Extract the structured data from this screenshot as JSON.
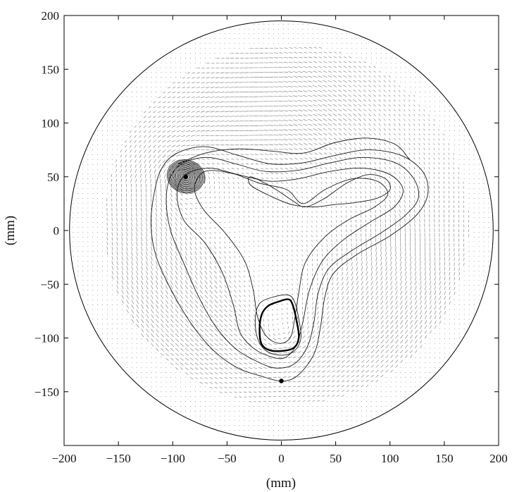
{
  "chart_data": {
    "type": "vector-field",
    "title": "",
    "xlabel": "(mm)",
    "ylabel": "(mm)",
    "xlim": [
      -200,
      200
    ],
    "ylim": [
      -200,
      200
    ],
    "xticks": [
      -200,
      -150,
      -100,
      -50,
      0,
      50,
      100,
      150,
      200
    ],
    "yticks": [
      -150,
      -100,
      -50,
      0,
      50,
      100,
      150,
      200
    ],
    "xtick_labels": [
      "−200",
      "−150",
      "−100",
      "−50",
      "0",
      "50",
      "100",
      "150",
      "200"
    ],
    "ytick_labels": [
      "−150",
      "−100",
      "−50",
      "0",
      "50",
      "100",
      "150",
      "200"
    ],
    "grid": false,
    "boundary_circle": {
      "cx": 0,
      "cy": 0,
      "r": 195
    },
    "vector_field_extent": {
      "cx": 5,
      "cy": 5,
      "r": 168
    },
    "vortices": [
      {
        "x": -90,
        "y": 50,
        "strength": 1.2
      },
      {
        "x": 10,
        "y": 5,
        "strength": -0.15
      },
      {
        "x": 0,
        "y": -95,
        "strength": 0.9
      }
    ],
    "markers": [
      {
        "x": -88,
        "y": 50
      },
      {
        "x": 0,
        "y": -140
      }
    ],
    "streamlines": [
      {
        "id": "outer-trefoil",
        "points": [
          [
            0,
            -140
          ],
          [
            -20,
            -135
          ],
          [
            -40,
            -128
          ],
          [
            -62,
            -112
          ],
          [
            -82,
            -88
          ],
          [
            -100,
            -58
          ],
          [
            -115,
            -25
          ],
          [
            -120,
            5
          ],
          [
            -117,
            35
          ],
          [
            -110,
            58
          ],
          [
            -96,
            72
          ],
          [
            -70,
            78
          ],
          [
            -40,
            70
          ],
          [
            -10,
            62
          ],
          [
            20,
            63
          ],
          [
            50,
            70
          ],
          [
            80,
            75
          ],
          [
            110,
            70
          ],
          [
            130,
            55
          ],
          [
            135,
            35
          ],
          [
            125,
            15
          ],
          [
            100,
            -5
          ],
          [
            70,
            -22
          ],
          [
            48,
            -40
          ],
          [
            40,
            -62
          ],
          [
            36,
            -90
          ],
          [
            30,
            -115
          ],
          [
            15,
            -135
          ],
          [
            0,
            -140
          ]
        ]
      },
      {
        "id": "middle-trefoil",
        "points": [
          [
            -5,
            -128
          ],
          [
            -22,
            -122
          ],
          [
            -42,
            -110
          ],
          [
            -60,
            -90
          ],
          [
            -76,
            -62
          ],
          [
            -90,
            -30
          ],
          [
            -102,
            0
          ],
          [
            -106,
            28
          ],
          [
            -102,
            50
          ],
          [
            -90,
            63
          ],
          [
            -68,
            68
          ],
          [
            -42,
            62
          ],
          [
            -15,
            55
          ],
          [
            15,
            56
          ],
          [
            45,
            63
          ],
          [
            75,
            68
          ],
          [
            105,
            63
          ],
          [
            122,
            48
          ],
          [
            126,
            30
          ],
          [
            114,
            14
          ],
          [
            92,
            -2
          ],
          [
            66,
            -18
          ],
          [
            44,
            -35
          ],
          [
            34,
            -58
          ],
          [
            30,
            -85
          ],
          [
            24,
            -108
          ],
          [
            12,
            -124
          ],
          [
            -5,
            -128
          ]
        ]
      },
      {
        "id": "inner-trefoil",
        "points": [
          [
            -8,
            -118
          ],
          [
            -25,
            -110
          ],
          [
            -38,
            -95
          ],
          [
            -44,
            -70
          ],
          [
            -54,
            -40
          ],
          [
            -70,
            -12
          ],
          [
            -90,
            10
          ],
          [
            -96,
            35
          ],
          [
            -88,
            52
          ],
          [
            -66,
            58
          ],
          [
            -40,
            52
          ],
          [
            -12,
            46
          ],
          [
            15,
            48
          ],
          [
            45,
            55
          ],
          [
            75,
            58
          ],
          [
            100,
            52
          ],
          [
            112,
            38
          ],
          [
            104,
            22
          ],
          [
            82,
            8
          ],
          [
            58,
            -8
          ],
          [
            38,
            -28
          ],
          [
            26,
            -55
          ],
          [
            20,
            -84
          ],
          [
            14,
            -106
          ],
          [
            4,
            -118
          ],
          [
            -8,
            -118
          ]
        ]
      },
      {
        "id": "innermost-loop",
        "points": [
          [
            -2,
            -105
          ],
          [
            -14,
            -98
          ],
          [
            -22,
            -80
          ],
          [
            -26,
            -55
          ],
          [
            -34,
            -28
          ],
          [
            -52,
            -2
          ],
          [
            -72,
            20
          ],
          [
            -80,
            40
          ],
          [
            -70,
            55
          ],
          [
            -45,
            53
          ],
          [
            -20,
            44
          ],
          [
            5,
            38
          ],
          [
            20,
            25
          ],
          [
            40,
            38
          ],
          [
            65,
            48
          ],
          [
            88,
            46
          ],
          [
            98,
            34
          ],
          [
            86,
            22
          ],
          [
            62,
            10
          ],
          [
            40,
            -6
          ],
          [
            22,
            -30
          ],
          [
            16,
            -58
          ],
          [
            12,
            -84
          ],
          [
            8,
            -100
          ],
          [
            -2,
            -105
          ]
        ]
      },
      {
        "id": "top-arc",
        "points": [
          [
            -95,
            62
          ],
          [
            -70,
            72
          ],
          [
            -40,
            76
          ],
          [
            -10,
            74
          ],
          [
            20,
            72
          ],
          [
            50,
            82
          ],
          [
            80,
            86
          ],
          [
            105,
            80
          ],
          [
            118,
            66
          ]
        ]
      },
      {
        "id": "center-loop",
        "points": [
          [
            -28,
            50
          ],
          [
            -8,
            40
          ],
          [
            10,
            28
          ],
          [
            22,
            22
          ],
          [
            40,
            30
          ],
          [
            60,
            44
          ],
          [
            80,
            52
          ],
          [
            96,
            48
          ],
          [
            100,
            38
          ],
          [
            88,
            30
          ],
          [
            68,
            26
          ],
          [
            48,
            24
          ],
          [
            30,
            22
          ],
          [
            10,
            24
          ],
          [
            -10,
            32
          ],
          [
            -28,
            42
          ],
          [
            -28,
            50
          ]
        ]
      },
      {
        "id": "bottom-lobe-outer",
        "points": [
          [
            0,
            -116
          ],
          [
            -14,
            -112
          ],
          [
            -22,
            -100
          ],
          [
            -24,
            -82
          ],
          [
            -20,
            -68
          ],
          [
            -8,
            -62
          ],
          [
            6,
            -60
          ],
          [
            12,
            -66
          ],
          [
            16,
            -82
          ],
          [
            18,
            -100
          ],
          [
            12,
            -112
          ],
          [
            0,
            -116
          ]
        ]
      }
    ],
    "bold_loops": [
      {
        "id": "bottom-lobe-bold",
        "points": [
          [
            -8,
            -112
          ],
          [
            -18,
            -106
          ],
          [
            -20,
            -92
          ],
          [
            -18,
            -78
          ],
          [
            -12,
            -70
          ],
          [
            -2,
            -66
          ],
          [
            6,
            -64
          ],
          [
            10,
            -68
          ],
          [
            14,
            -84
          ],
          [
            16,
            -100
          ],
          [
            10,
            -110
          ],
          [
            -8,
            -112
          ]
        ]
      }
    ],
    "spiral": {
      "x": -88,
      "y": 50,
      "r_outer": 18,
      "r_inner": 2,
      "turns": 14,
      "aspect": 0.88,
      "tilt": -0.35
    }
  }
}
